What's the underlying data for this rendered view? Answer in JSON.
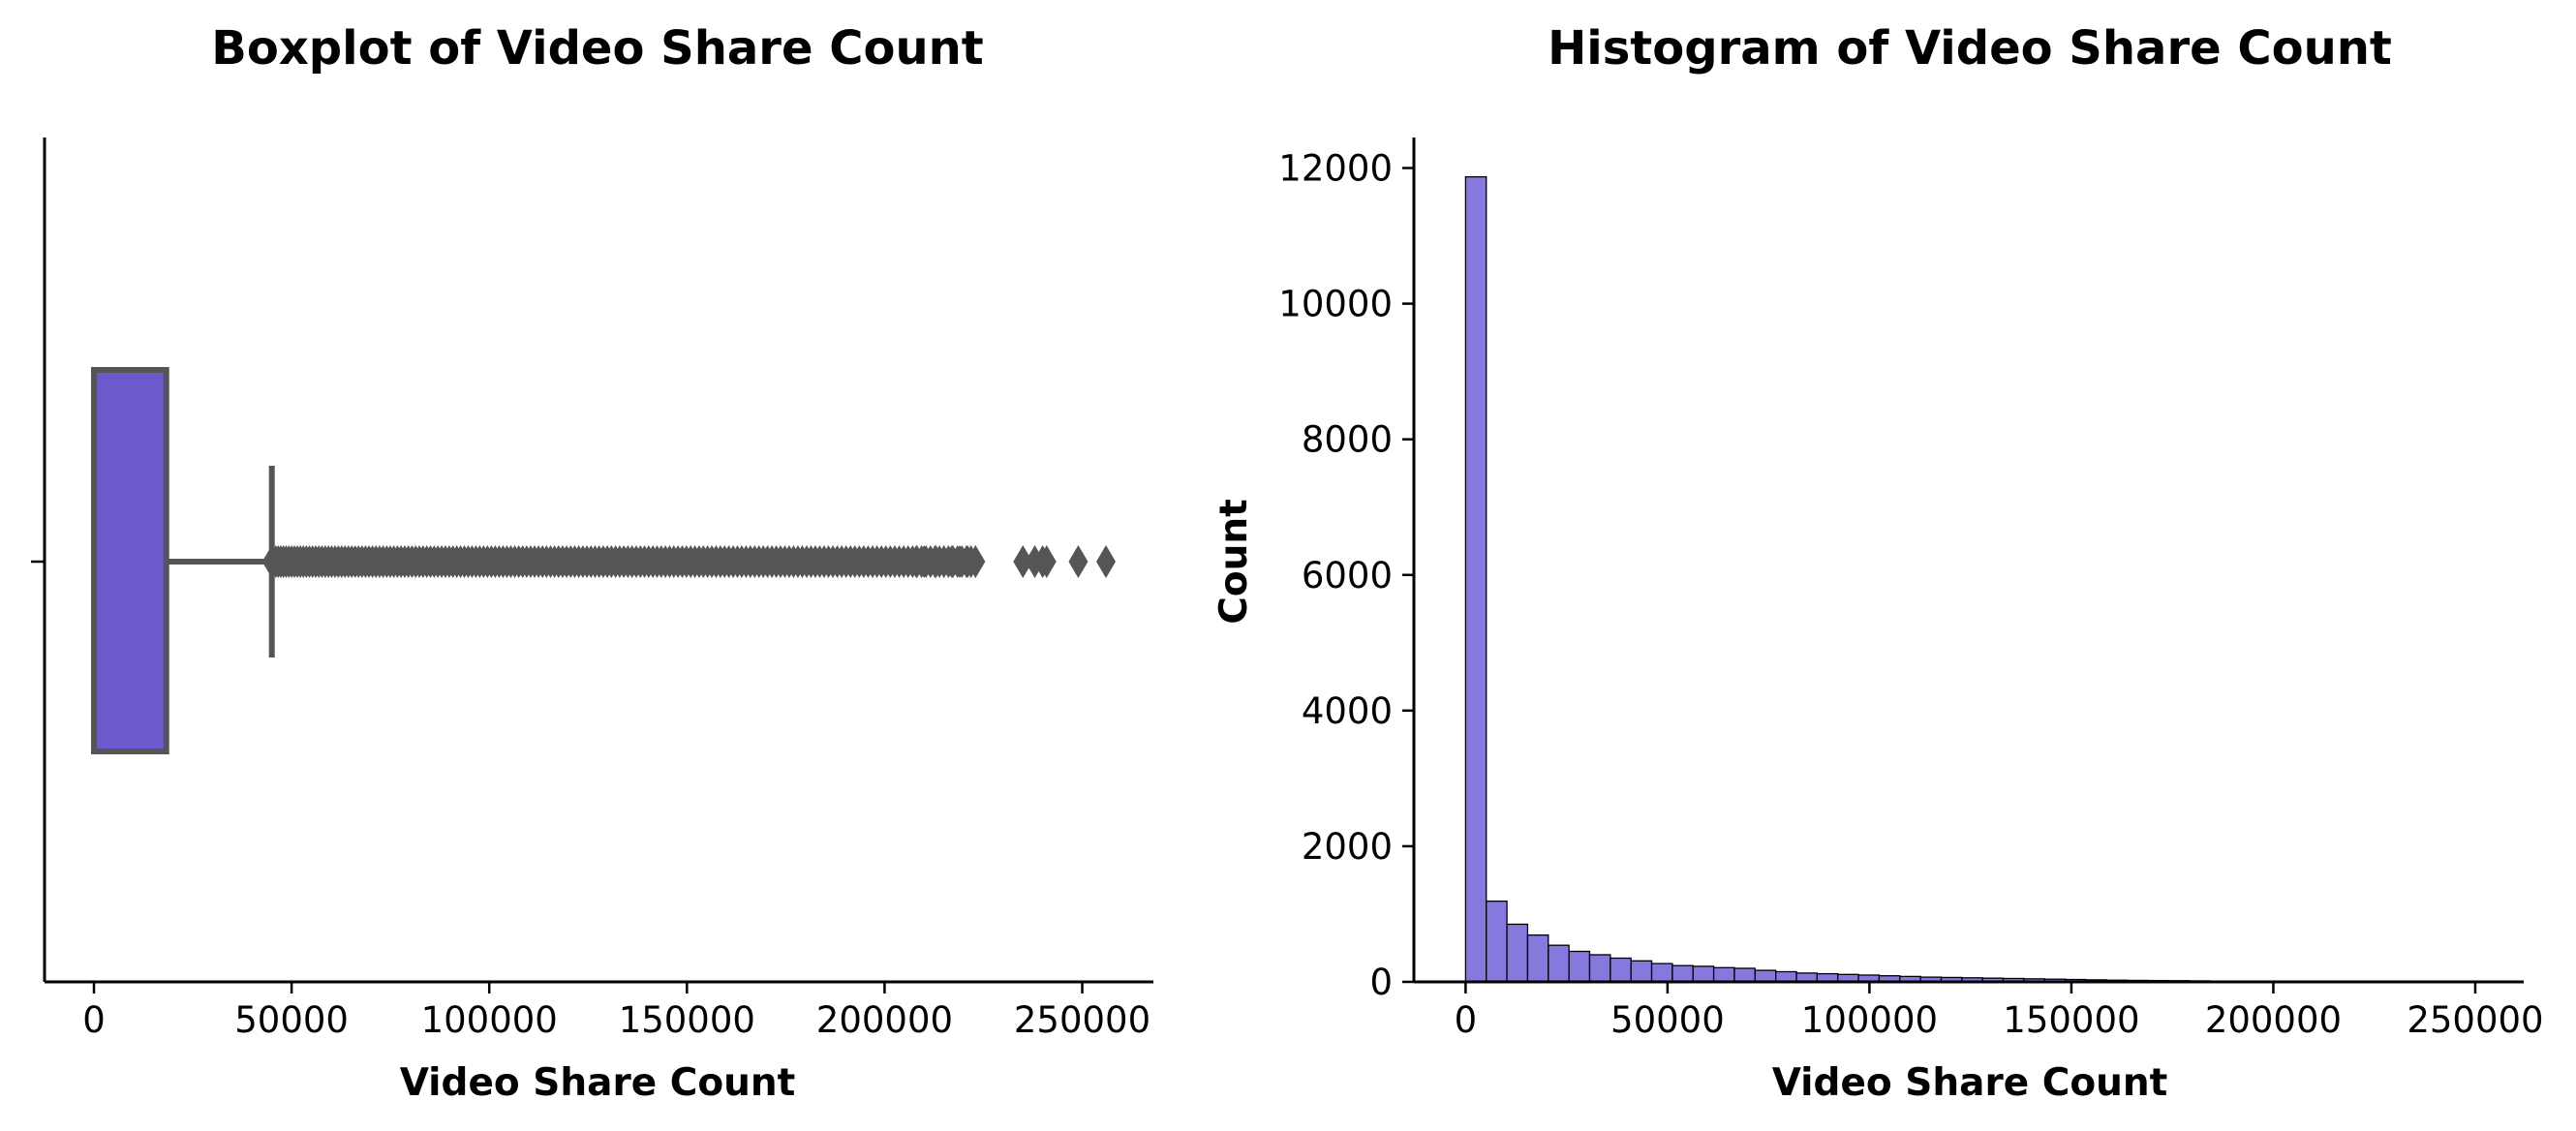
{
  "chart_data": [
    {
      "type": "boxplot",
      "title": "Boxplot of Video Share Count",
      "xlabel": "Video Share Count",
      "ylabel": "",
      "xlim": [
        -12500,
        268000
      ],
      "xticks": [
        0,
        50000,
        100000,
        150000,
        200000,
        250000
      ],
      "xtick_labels": [
        "0",
        "50000",
        "100000",
        "150000",
        "200000",
        "250000"
      ],
      "box": {
        "whisker_low": 0,
        "q1": 0,
        "median": 0,
        "q3": 18300,
        "whisker_high": 45000
      },
      "outlier_range": [
        45000,
        223000
      ],
      "outliers_sparse": [
        208000,
        210000,
        213000,
        215000,
        217000,
        219000,
        221000,
        223000,
        235000,
        238000,
        240000,
        241000,
        249000,
        256000
      ],
      "box_color": "#6a5acd",
      "line_color": "#555555"
    },
    {
      "type": "bar",
      "title": "Histogram of Video Share Count",
      "xlabel": "Video Share Count",
      "ylabel": "Count",
      "xlim": [
        -12800,
        262000
      ],
      "ylim": [
        0,
        12450
      ],
      "xticks": [
        0,
        50000,
        100000,
        150000,
        200000,
        250000
      ],
      "xtick_labels": [
        "0",
        "50000",
        "100000",
        "150000",
        "200000",
        "250000"
      ],
      "yticks": [
        0,
        2000,
        4000,
        6000,
        8000,
        10000,
        12000
      ],
      "ytick_labels": [
        "0",
        "2000",
        "4000",
        "6000",
        "8000",
        "10000",
        "12000"
      ],
      "bin_start": 0,
      "bin_width": 5120,
      "values": [
        11870,
        1190,
        850,
        690,
        540,
        450,
        400,
        350,
        310,
        270,
        240,
        230,
        210,
        200,
        170,
        150,
        130,
        120,
        110,
        100,
        90,
        80,
        70,
        65,
        60,
        55,
        50,
        45,
        40,
        35,
        30,
        25,
        22,
        20,
        18,
        15,
        12,
        10,
        9,
        8,
        7,
        6,
        5,
        4,
        4,
        3,
        3,
        2,
        2,
        1
      ],
      "bar_color": "#8579dd",
      "edge_color": "#000000"
    }
  ]
}
